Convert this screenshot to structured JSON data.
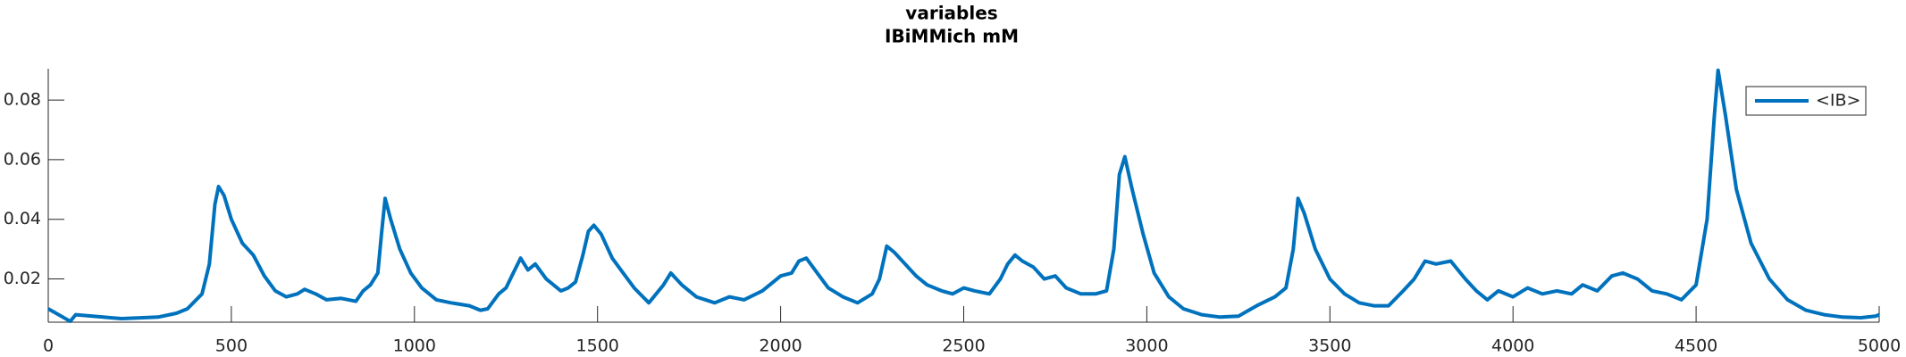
{
  "chart_data": {
    "type": "line",
    "title": "variables",
    "subtitle": "IBiMMich mM",
    "x": [
      0,
      50,
      60,
      75,
      150,
      200,
      300,
      350,
      380,
      420,
      440,
      455,
      465,
      480,
      500,
      530,
      560,
      590,
      620,
      650,
      680,
      700,
      730,
      760,
      800,
      840,
      860,
      880,
      900,
      910,
      920,
      935,
      960,
      990,
      1020,
      1060,
      1100,
      1150,
      1180,
      1200,
      1230,
      1250,
      1270,
      1290,
      1310,
      1330,
      1360,
      1400,
      1420,
      1440,
      1460,
      1475,
      1490,
      1510,
      1540,
      1570,
      1600,
      1640,
      1660,
      1680,
      1700,
      1730,
      1770,
      1820,
      1860,
      1900,
      1950,
      1980,
      2000,
      2030,
      2050,
      2070,
      2100,
      2130,
      2170,
      2210,
      2250,
      2270,
      2290,
      2310,
      2340,
      2370,
      2400,
      2440,
      2470,
      2500,
      2530,
      2570,
      2600,
      2620,
      2640,
      2660,
      2690,
      2720,
      2750,
      2780,
      2820,
      2860,
      2890,
      2910,
      2925,
      2940,
      2960,
      2990,
      3020,
      3060,
      3100,
      3150,
      3200,
      3250,
      3300,
      3350,
      3380,
      3400,
      3413,
      3430,
      3460,
      3500,
      3540,
      3580,
      3620,
      3660,
      3700,
      3730,
      3760,
      3790,
      3830,
      3870,
      3900,
      3930,
      3960,
      4000,
      4040,
      4080,
      4120,
      4160,
      4190,
      4230,
      4270,
      4300,
      4340,
      4380,
      4420,
      4460,
      4500,
      4530,
      4550,
      4560,
      4580,
      4610,
      4650,
      4700,
      4750,
      4800,
      4850,
      4900,
      4950,
      4990,
      5000
    ],
    "series": [
      {
        "name": "<IB>",
        "color": "#0072bd",
        "values": [
          0.01,
          0.0065,
          0.0058,
          0.008,
          0.0072,
          0.0067,
          0.0072,
          0.0085,
          0.01,
          0.015,
          0.025,
          0.045,
          0.051,
          0.048,
          0.04,
          0.032,
          0.028,
          0.021,
          0.016,
          0.014,
          0.015,
          0.0165,
          0.015,
          0.013,
          0.0135,
          0.0125,
          0.016,
          0.018,
          0.022,
          0.035,
          0.047,
          0.04,
          0.03,
          0.022,
          0.017,
          0.013,
          0.012,
          0.011,
          0.0095,
          0.01,
          0.015,
          0.017,
          0.022,
          0.027,
          0.023,
          0.025,
          0.02,
          0.016,
          0.017,
          0.019,
          0.028,
          0.036,
          0.038,
          0.035,
          0.027,
          0.022,
          0.017,
          0.012,
          0.015,
          0.018,
          0.022,
          0.018,
          0.014,
          0.012,
          0.014,
          0.013,
          0.016,
          0.019,
          0.021,
          0.022,
          0.026,
          0.027,
          0.022,
          0.017,
          0.014,
          0.012,
          0.015,
          0.02,
          0.031,
          0.029,
          0.025,
          0.021,
          0.018,
          0.016,
          0.015,
          0.017,
          0.016,
          0.015,
          0.02,
          0.025,
          0.028,
          0.026,
          0.024,
          0.02,
          0.021,
          0.017,
          0.015,
          0.015,
          0.016,
          0.03,
          0.055,
          0.061,
          0.05,
          0.035,
          0.022,
          0.014,
          0.01,
          0.008,
          0.0072,
          0.0075,
          0.011,
          0.014,
          0.017,
          0.03,
          0.047,
          0.042,
          0.03,
          0.02,
          0.015,
          0.012,
          0.011,
          0.011,
          0.016,
          0.02,
          0.026,
          0.025,
          0.026,
          0.02,
          0.016,
          0.013,
          0.016,
          0.014,
          0.017,
          0.015,
          0.016,
          0.015,
          0.018,
          0.016,
          0.021,
          0.022,
          0.02,
          0.016,
          0.015,
          0.013,
          0.018,
          0.04,
          0.075,
          0.09,
          0.075,
          0.05,
          0.032,
          0.02,
          0.013,
          0.0095,
          0.008,
          0.0072,
          0.007,
          0.0075,
          0.008
        ]
      }
    ],
    "xlim": [
      0,
      5000
    ],
    "xticks": [
      0,
      500,
      1000,
      1500,
      2000,
      2500,
      3000,
      3500,
      4000,
      4500,
      5000
    ],
    "ylim": [
      0.0055,
      0.0905
    ],
    "yticks": [
      0.02,
      0.04,
      0.06,
      0.08
    ],
    "legend": "top-right"
  }
}
